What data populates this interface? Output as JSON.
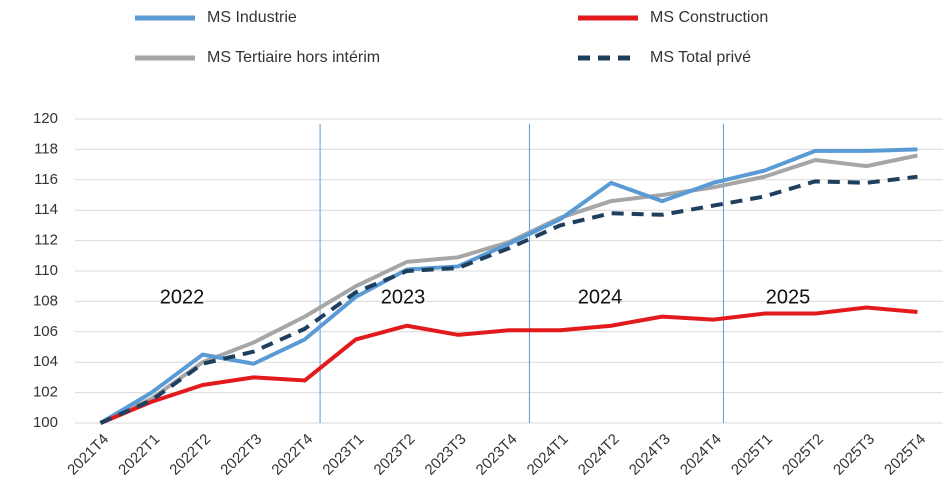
{
  "chart_data": {
    "type": "line",
    "categories": [
      "2021T4",
      "2022T1",
      "2022T2",
      "2022T3",
      "2022T4",
      "2023T1",
      "2023T2",
      "2023T3",
      "2023T4",
      "2024T1",
      "2024T2",
      "2024T3",
      "2024T4",
      "2025T1",
      "2025T2",
      "2025T3",
      "2025T4"
    ],
    "series": [
      {
        "name": "MS Industrie",
        "color": "#5b9bd5",
        "dashed": false,
        "values": [
          100,
          102,
          104.5,
          103.9,
          105.5,
          108.3,
          110.1,
          110.3,
          111.8,
          113.4,
          115.8,
          114.6,
          115.8,
          116.6,
          117.9,
          117.9,
          118.0
        ]
      },
      {
        "name": "MS Construction",
        "color": "#e31a1c",
        "dashed": false,
        "values": [
          100,
          101.4,
          102.5,
          103.0,
          102.8,
          105.5,
          106.4,
          105.8,
          106.1,
          106.1,
          106.4,
          107.0,
          106.8,
          107.2,
          107.2,
          107.6,
          107.3
        ]
      },
      {
        "name": "MS Tertiaire hors intérim",
        "color": "#a6a6a6",
        "dashed": false,
        "values": [
          100,
          101.6,
          104.0,
          105.3,
          107.0,
          109.0,
          110.6,
          110.9,
          111.9,
          113.5,
          114.6,
          115.0,
          115.5,
          116.2,
          117.3,
          116.9,
          117.6
        ]
      },
      {
        "name": "MS Total privé",
        "color": "#1f3f5f",
        "dashed": true,
        "values": [
          100,
          101.5,
          103.9,
          104.7,
          106.2,
          108.6,
          110.0,
          110.2,
          111.5,
          113.0,
          113.8,
          113.7,
          114.3,
          114.9,
          115.9,
          115.8,
          116.2
        ]
      }
    ],
    "annotations": [
      "2022",
      "2023",
      "2024",
      "2025"
    ],
    "ylim": [
      100,
      120
    ],
    "yticks": [
      100,
      102,
      104,
      106,
      108,
      110,
      112,
      114,
      116,
      118,
      120
    ],
    "grid": true
  }
}
